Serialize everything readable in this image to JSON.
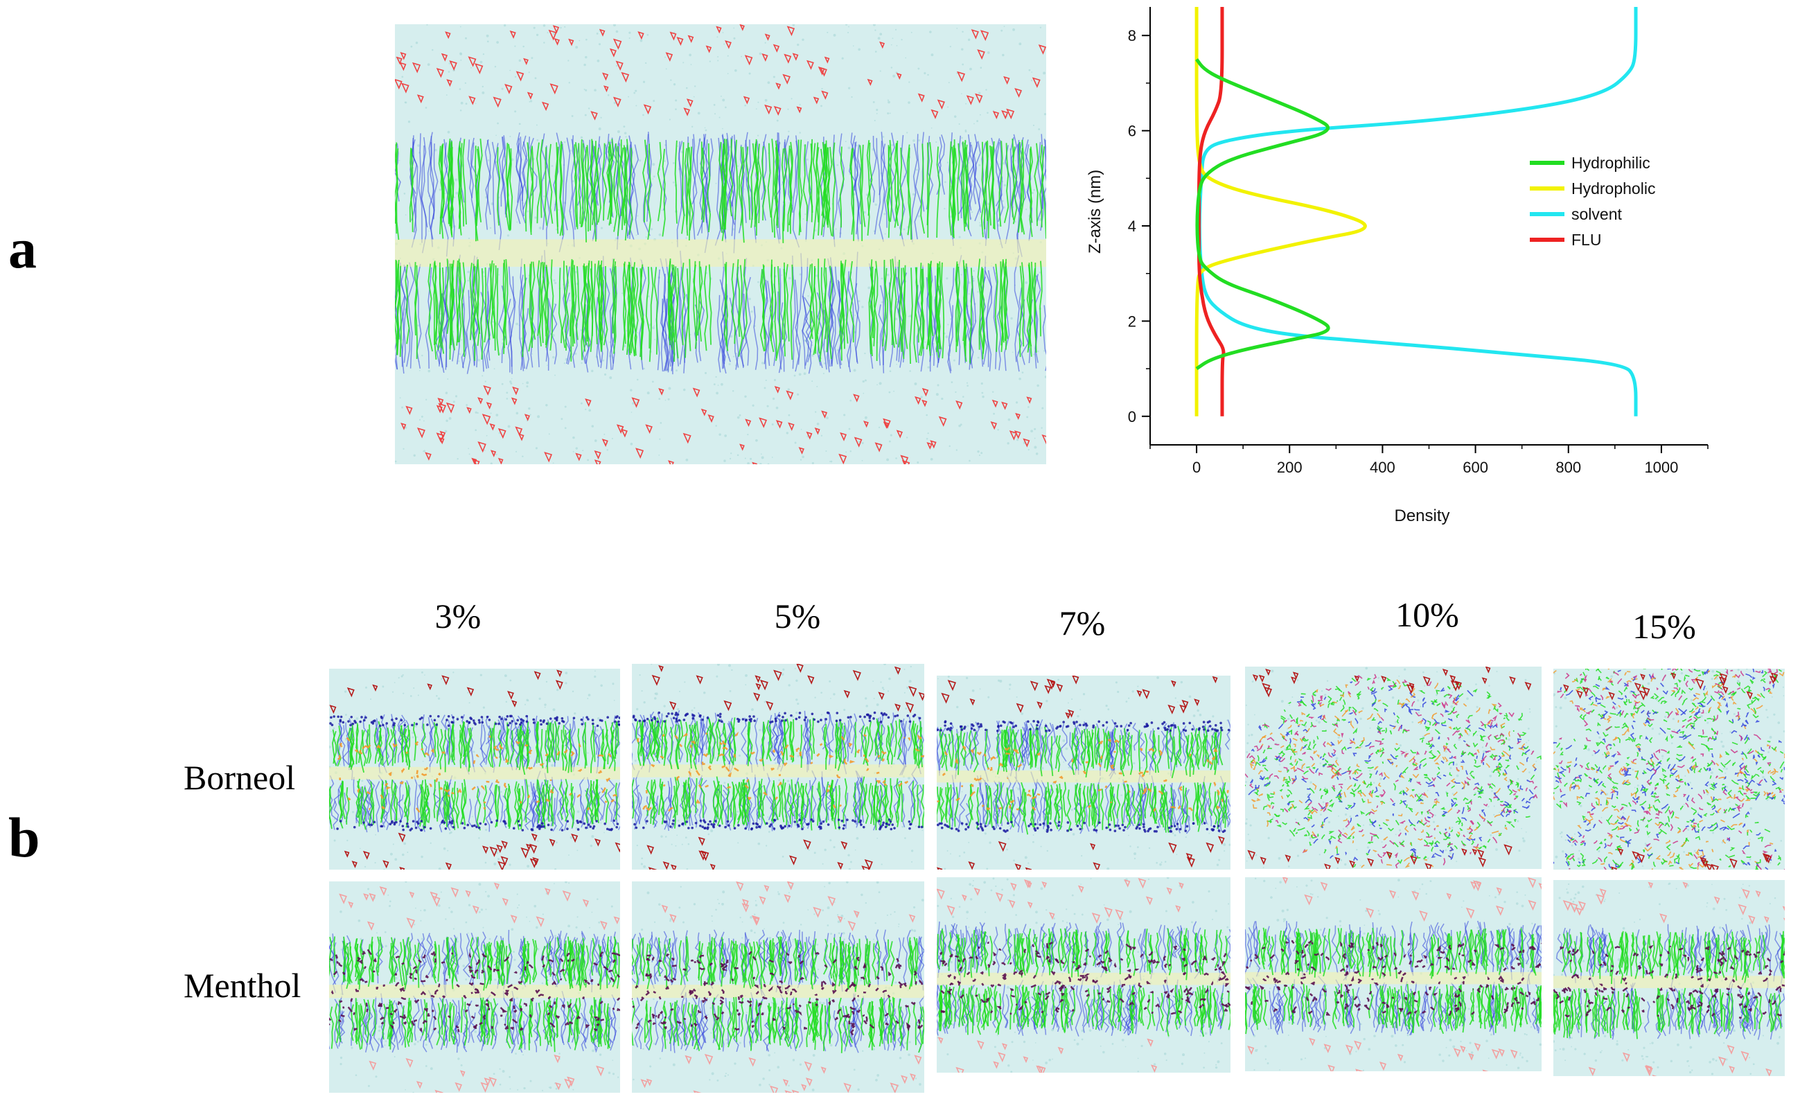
{
  "figure": {
    "panel_a_label": "a",
    "panel_b_label": "b"
  },
  "panel_b": {
    "columns": [
      "3%",
      "5%",
      "7%",
      "10%",
      "15%"
    ],
    "rows": [
      "Borneol",
      "Menthol"
    ]
  },
  "colors": {
    "hydrophilic": "#22dd22",
    "hydrophobic": "#f2f200",
    "solvent": "#22e6f0",
    "flu": "#ee2222",
    "tails_blue": "#3344dd",
    "borneol_orange": "#f29a2e",
    "menthol_purple": "#5a1150",
    "water": "#d6eeee"
  },
  "chart_data": {
    "type": "line",
    "orientation": "horizontal-density-vs-z",
    "title": "",
    "xlabel": "Density",
    "ylabel": "Z-axis (nm)",
    "xlim": [
      -100,
      1100
    ],
    "ylim": [
      -0.6,
      8.6
    ],
    "xticks": [
      0,
      200,
      400,
      600,
      800,
      1000
    ],
    "yticks": [
      0,
      2,
      4,
      6,
      8
    ],
    "legend_position": "right-middle",
    "series": [
      {
        "name": "Hydrophilic",
        "color": "#22dd22",
        "points": [
          [
            0,
            1.0
          ],
          [
            30,
            1.2
          ],
          [
            100,
            1.4
          ],
          [
            200,
            1.6
          ],
          [
            300,
            1.8
          ],
          [
            250,
            2.1
          ],
          [
            150,
            2.5
          ],
          [
            60,
            2.8
          ],
          [
            20,
            3.1
          ],
          [
            5,
            3.3
          ],
          [
            0,
            4.0
          ],
          [
            5,
            4.8
          ],
          [
            20,
            5.1
          ],
          [
            70,
            5.4
          ],
          [
            180,
            5.7
          ],
          [
            300,
            6.0
          ],
          [
            250,
            6.3
          ],
          [
            150,
            6.7
          ],
          [
            50,
            7.1
          ],
          [
            15,
            7.3
          ],
          [
            0,
            7.5
          ]
        ]
      },
      {
        "name": "Hydropholic",
        "color": "#f2f200",
        "points": [
          [
            0,
            0.0
          ],
          [
            0,
            2.8
          ],
          [
            10,
            3.1
          ],
          [
            70,
            3.3
          ],
          [
            250,
            3.7
          ],
          [
            390,
            3.95
          ],
          [
            300,
            4.3
          ],
          [
            100,
            4.7
          ],
          [
            20,
            5.0
          ],
          [
            5,
            5.3
          ],
          [
            0,
            6.0
          ],
          [
            0,
            8.6
          ]
        ]
      },
      {
        "name": "solvent",
        "color": "#22e6f0",
        "points": [
          [
            945,
            0.0
          ],
          [
            945,
            0.8
          ],
          [
            920,
            1.1
          ],
          [
            700,
            1.3
          ],
          [
            400,
            1.55
          ],
          [
            200,
            1.7
          ],
          [
            100,
            1.9
          ],
          [
            50,
            2.2
          ],
          [
            20,
            2.5
          ],
          [
            10,
            3.0
          ],
          [
            5,
            4.0
          ],
          [
            10,
            5.0
          ],
          [
            15,
            5.6
          ],
          [
            60,
            5.8
          ],
          [
            200,
            6.0
          ],
          [
            500,
            6.2
          ],
          [
            750,
            6.5
          ],
          [
            880,
            6.8
          ],
          [
            930,
            7.2
          ],
          [
            945,
            7.5
          ],
          [
            945,
            8.6
          ]
        ]
      },
      {
        "name": "FLU",
        "color": "#ee2222",
        "points": [
          [
            55,
            0.0
          ],
          [
            55,
            1.2
          ],
          [
            60,
            1.4
          ],
          [
            40,
            1.7
          ],
          [
            20,
            2.1
          ],
          [
            10,
            2.6
          ],
          [
            5,
            3.1
          ],
          [
            5,
            4.0
          ],
          [
            5,
            5.0
          ],
          [
            8,
            5.6
          ],
          [
            18,
            6.0
          ],
          [
            40,
            6.4
          ],
          [
            55,
            6.8
          ],
          [
            55,
            8.6
          ]
        ]
      }
    ]
  }
}
